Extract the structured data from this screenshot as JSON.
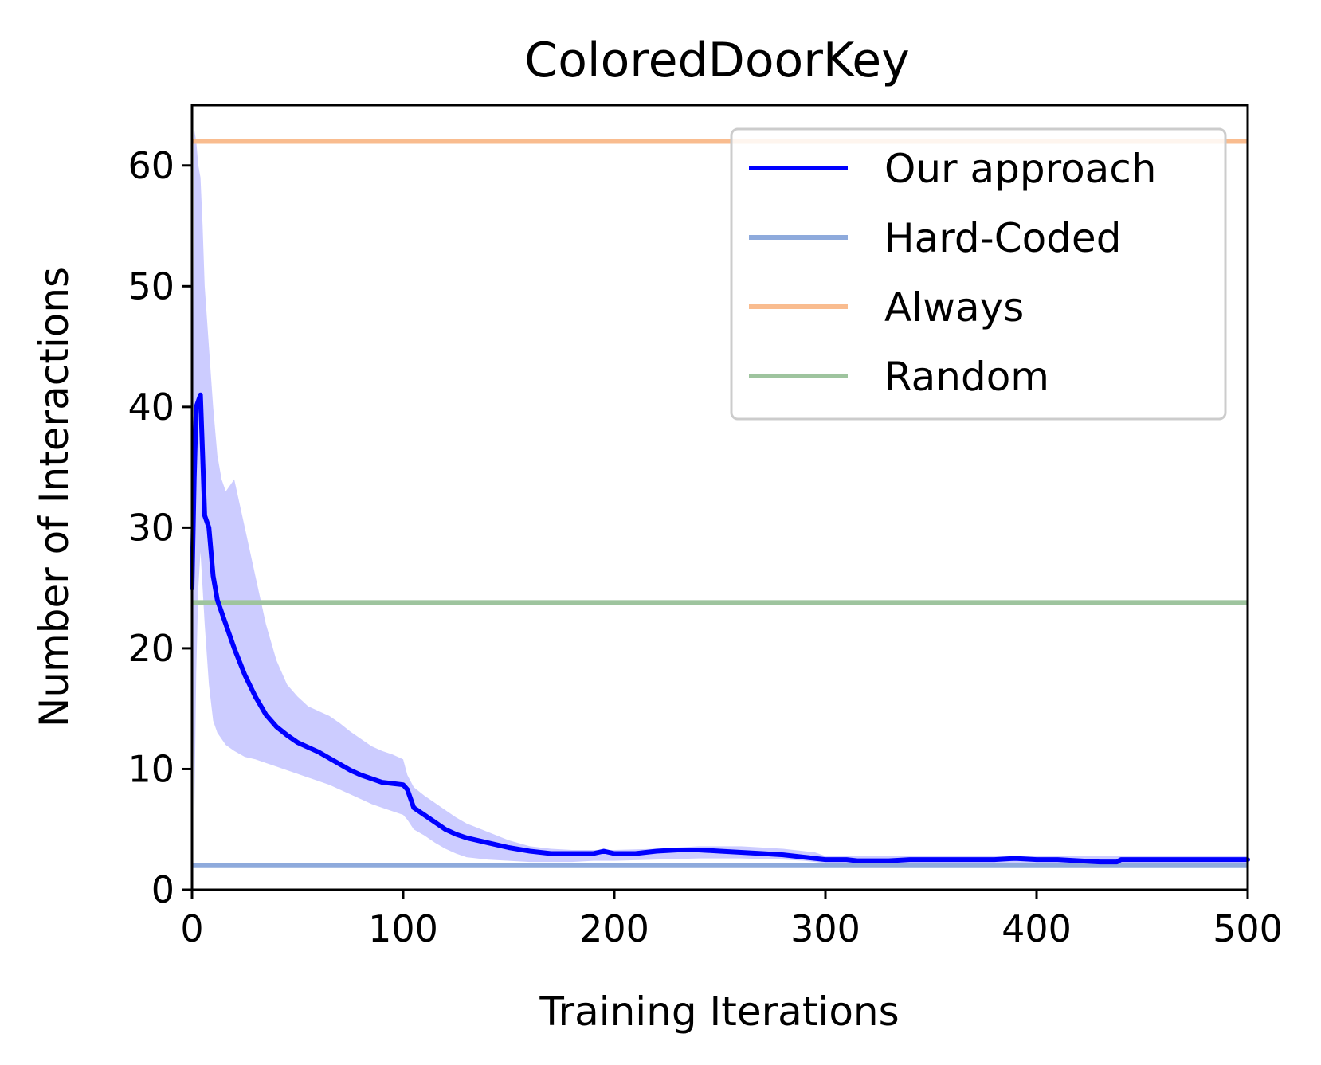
{
  "chart_data": {
    "type": "line",
    "title": "ColoredDoorKey",
    "xlabel": "Training Iterations",
    "ylabel": "Number of Interactions",
    "xlim": [
      0,
      500
    ],
    "ylim": [
      0,
      65
    ],
    "xticks": [
      0,
      100,
      200,
      300,
      400,
      500
    ],
    "yticks": [
      0,
      10,
      20,
      30,
      40,
      50,
      60
    ],
    "grid": false,
    "legend_position": "top-right",
    "series": [
      {
        "name": "Our approach",
        "kind": "line",
        "color": "#0000ff",
        "x": [
          0,
          1,
          2,
          3,
          4,
          5,
          6,
          8,
          10,
          12,
          14,
          16,
          20,
          25,
          30,
          35,
          40,
          45,
          50,
          55,
          60,
          65,
          70,
          75,
          80,
          85,
          90,
          95,
          100,
          102,
          105,
          110,
          115,
          120,
          125,
          130,
          140,
          150,
          160,
          170,
          180,
          190,
          195,
          200,
          210,
          220,
          230,
          240,
          250,
          260,
          270,
          280,
          290,
          295,
          300,
          310,
          315,
          320,
          330,
          340,
          350,
          360,
          370,
          380,
          390,
          400,
          410,
          420,
          430,
          438,
          440,
          450,
          460,
          470,
          480,
          490,
          500
        ],
        "y": [
          25,
          34,
          40,
          40.5,
          41,
          36,
          31,
          30,
          26,
          24,
          23,
          22,
          20,
          17.8,
          16,
          14.5,
          13.5,
          12.8,
          12.2,
          11.8,
          11.4,
          10.9,
          10.4,
          9.9,
          9.5,
          9.2,
          8.9,
          8.8,
          8.7,
          8.3,
          6.8,
          6.2,
          5.6,
          5.0,
          4.6,
          4.3,
          3.9,
          3.5,
          3.2,
          3.0,
          3.0,
          3.0,
          3.2,
          3.0,
          3.0,
          3.2,
          3.3,
          3.3,
          3.2,
          3.1,
          3.0,
          2.9,
          2.7,
          2.6,
          2.5,
          2.5,
          2.4,
          2.4,
          2.4,
          2.5,
          2.5,
          2.5,
          2.5,
          2.5,
          2.6,
          2.5,
          2.5,
          2.4,
          2.3,
          2.3,
          2.5,
          2.5,
          2.5,
          2.5,
          2.5,
          2.5,
          2.5
        ]
      },
      {
        "name": "Hard-Coded",
        "kind": "hline",
        "color": "#8eaadc",
        "y": 2
      },
      {
        "name": "Always",
        "kind": "hline",
        "color": "#f9bc8f",
        "y": 62
      },
      {
        "name": "Random",
        "kind": "hline",
        "color": "#9ec49e",
        "y": 23.8
      }
    ],
    "band": {
      "series": "Our approach",
      "color": "#0000ff",
      "opacity": 0.2,
      "x": [
        0,
        1,
        2,
        3,
        4,
        5,
        6,
        8,
        10,
        12,
        14,
        16,
        20,
        25,
        30,
        35,
        40,
        45,
        50,
        55,
        60,
        65,
        70,
        75,
        80,
        85,
        90,
        95,
        100,
        102,
        105,
        110,
        115,
        120,
        125,
        130,
        140,
        150,
        160,
        170,
        180,
        190,
        200,
        220,
        240,
        260,
        280,
        290,
        295,
        300,
        320,
        350,
        400,
        450,
        500
      ],
      "upper": [
        27,
        63,
        62,
        60,
        59,
        55,
        50,
        45,
        40,
        36,
        34,
        33,
        34,
        30,
        26,
        22,
        19,
        17,
        16,
        15.2,
        14.8,
        14.4,
        13.8,
        13.1,
        12.5,
        11.9,
        11.5,
        11.2,
        10.8,
        9.5,
        8.5,
        7.8,
        7.2,
        6.6,
        6.0,
        5.5,
        4.8,
        4.1,
        3.6,
        3.4,
        3.3,
        3.3,
        3.3,
        3.4,
        3.6,
        3.6,
        3.4,
        3.2,
        3.1,
        2.8,
        2.8,
        2.8,
        2.8,
        2.8,
        2.8
      ],
      "lower": [
        23,
        5,
        18,
        25,
        28,
        25,
        22,
        17,
        14,
        13,
        12.5,
        12,
        11.5,
        11,
        10.8,
        10.5,
        10.2,
        9.9,
        9.6,
        9.3,
        9.0,
        8.7,
        8.3,
        7.9,
        7.5,
        7.1,
        6.8,
        6.5,
        6.2,
        5.8,
        5.0,
        4.5,
        3.9,
        3.4,
        3.0,
        2.7,
        2.5,
        2.4,
        2.3,
        2.3,
        2.3,
        2.4,
        2.4,
        2.5,
        2.6,
        2.6,
        2.5,
        2.4,
        2.3,
        2.2,
        2.2,
        2.2,
        2.2,
        2.2,
        2.2
      ]
    }
  }
}
